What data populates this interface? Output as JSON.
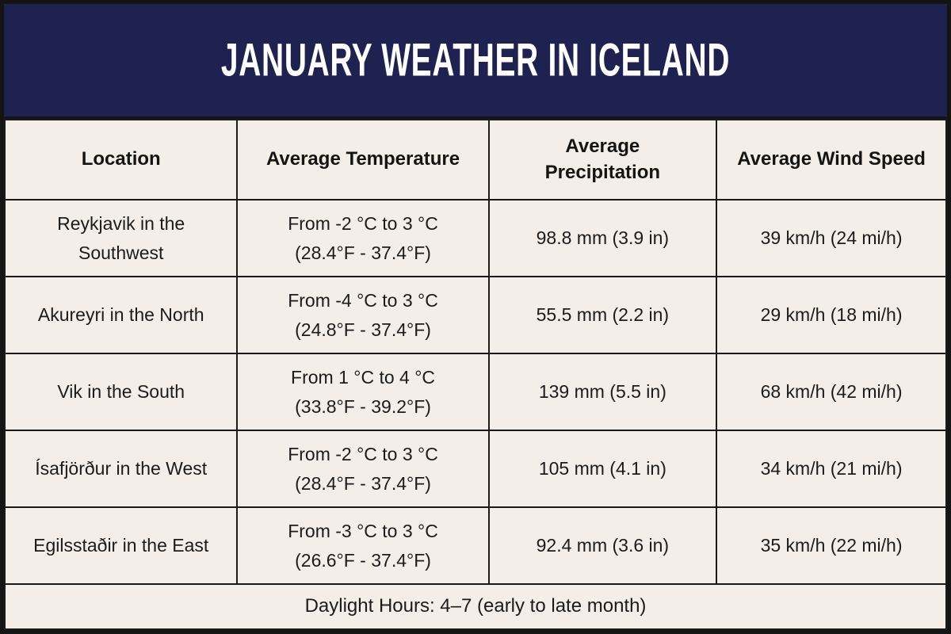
{
  "title": "JANUARY WEATHER IN ICELAND",
  "colors": {
    "banner_bg": "#1f2150",
    "page_bg": "#f3efe8",
    "border": "#141414",
    "title_text": "#ffffff",
    "body_text": "#1b1b1b"
  },
  "chart_data": {
    "type": "table",
    "title": "JANUARY WEATHER IN ICELAND",
    "columns": [
      "Location",
      "Average Temperature",
      "Average Precipitation",
      "Average Wind Speed"
    ],
    "rows": [
      {
        "location": "Reykjavik in the Southwest",
        "temp_c": "From -2 °C to 3 °C",
        "temp_f": "(28.4°F - 37.4°F)",
        "precipitation": "98.8 mm (3.9 in)",
        "wind": "39 km/h (24 mi/h)"
      },
      {
        "location": "Akureyri in the North",
        "temp_c": "From -4 °C to 3 °C",
        "temp_f": "(24.8°F - 37.4°F)",
        "precipitation": "55.5 mm (2.2 in)",
        "wind": "29 km/h (18 mi/h)"
      },
      {
        "location": "Vik in the South",
        "temp_c": "From 1 °C to 4 °C",
        "temp_f": "(33.8°F - 39.2°F)",
        "precipitation": "139 mm (5.5 in)",
        "wind": "68 km/h (42 mi/h)"
      },
      {
        "location": "Ísafjörður in the West",
        "temp_c": "From -2 °C to 3 °C",
        "temp_f": "(28.4°F - 37.4°F)",
        "precipitation": "105 mm (4.1 in)",
        "wind": "34 km/h (21 mi/h)"
      },
      {
        "location": "Egilsstaðir in the East",
        "temp_c": "From -3 °C to 3 °C",
        "temp_f": "(26.6°F - 37.4°F)",
        "precipitation": "92.4 mm (3.6 in)",
        "wind": "35 km/h (22 mi/h)"
      }
    ],
    "footer": "Daylight Hours: 4–7 (early to late month)"
  }
}
